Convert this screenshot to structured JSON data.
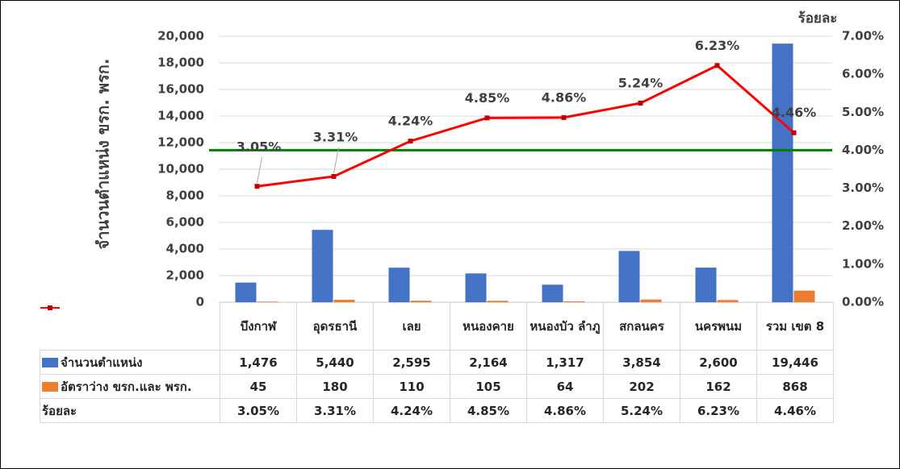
{
  "chart_data": {
    "type": "bar",
    "y_axis_label": "จำนวนตำแหน่ง ขรก. พรก.",
    "y2_axis_label": "ร้อยละ",
    "categories": [
      "บึงกาฬ",
      "อุดรธานี",
      "เลย",
      "หนองคาย",
      "หนองบัว ลำภู",
      "สกลนคร",
      "นครพนม",
      "รวม เขต 8"
    ],
    "series": [
      {
        "name": "จำนวนตำแหน่ง",
        "type": "bar",
        "color": "#4472c4",
        "values": [
          1476,
          5440,
          2595,
          2164,
          1317,
          3854,
          2600,
          19446
        ],
        "value_labels": [
          "1,476",
          "5,440",
          "2,595",
          "2,164",
          "1,317",
          "3,854",
          "2,600",
          "19,446"
        ]
      },
      {
        "name": "อัตราว่าง ขรก.และ พรก.",
        "type": "bar",
        "color": "#ed7d31",
        "values": [
          45,
          180,
          110,
          105,
          64,
          202,
          162,
          868
        ]
      },
      {
        "name": "ร้อยละ",
        "type": "line",
        "axis": "y2",
        "color": "#ff0000",
        "values": [
          3.05,
          3.31,
          4.24,
          4.85,
          4.86,
          5.24,
          6.23,
          4.46
        ],
        "value_labels": [
          "3.05%",
          "3.31%",
          "4.24%",
          "4.85%",
          "4.86%",
          "5.24%",
          "6.23%",
          "4.46%"
        ]
      }
    ],
    "ylim": [
      0,
      20000
    ],
    "yticks": [
      0,
      {
        "value": 2000,
        "label": "2,000"
      },
      {
        "value": 4000,
        "label": "4,000"
      },
      {
        "value": 6000,
        "label": "6,000"
      },
      {
        "value": 8000,
        "label": "8,000"
      },
      {
        "value": 10000,
        "label": "10,000"
      },
      {
        "value": 12000,
        "label": "12,000"
      },
      {
        "value": 14000,
        "label": "14,000"
      },
      {
        "value": 16000,
        "label": "16,000"
      },
      {
        "value": 18000,
        "label": "18,000"
      },
      {
        "value": 20000,
        "label": "20,000"
      }
    ],
    "y2lim": [
      0,
      7
    ],
    "y2ticks": [
      {
        "value": 0,
        "label": "0.00%"
      },
      {
        "value": 1,
        "label": "1.00%"
      },
      {
        "value": 2,
        "label": "2.00%"
      },
      {
        "value": 3,
        "label": "3.00%"
      },
      {
        "value": 4,
        "label": "4.00%"
      },
      {
        "value": 5,
        "label": "5.00%"
      },
      {
        "value": 6,
        "label": "6.00%"
      },
      {
        "value": 7,
        "label": "7.00%"
      }
    ],
    "reference_line": {
      "axis": "y2",
      "value": 4,
      "color": "#008000"
    },
    "grid": true
  }
}
